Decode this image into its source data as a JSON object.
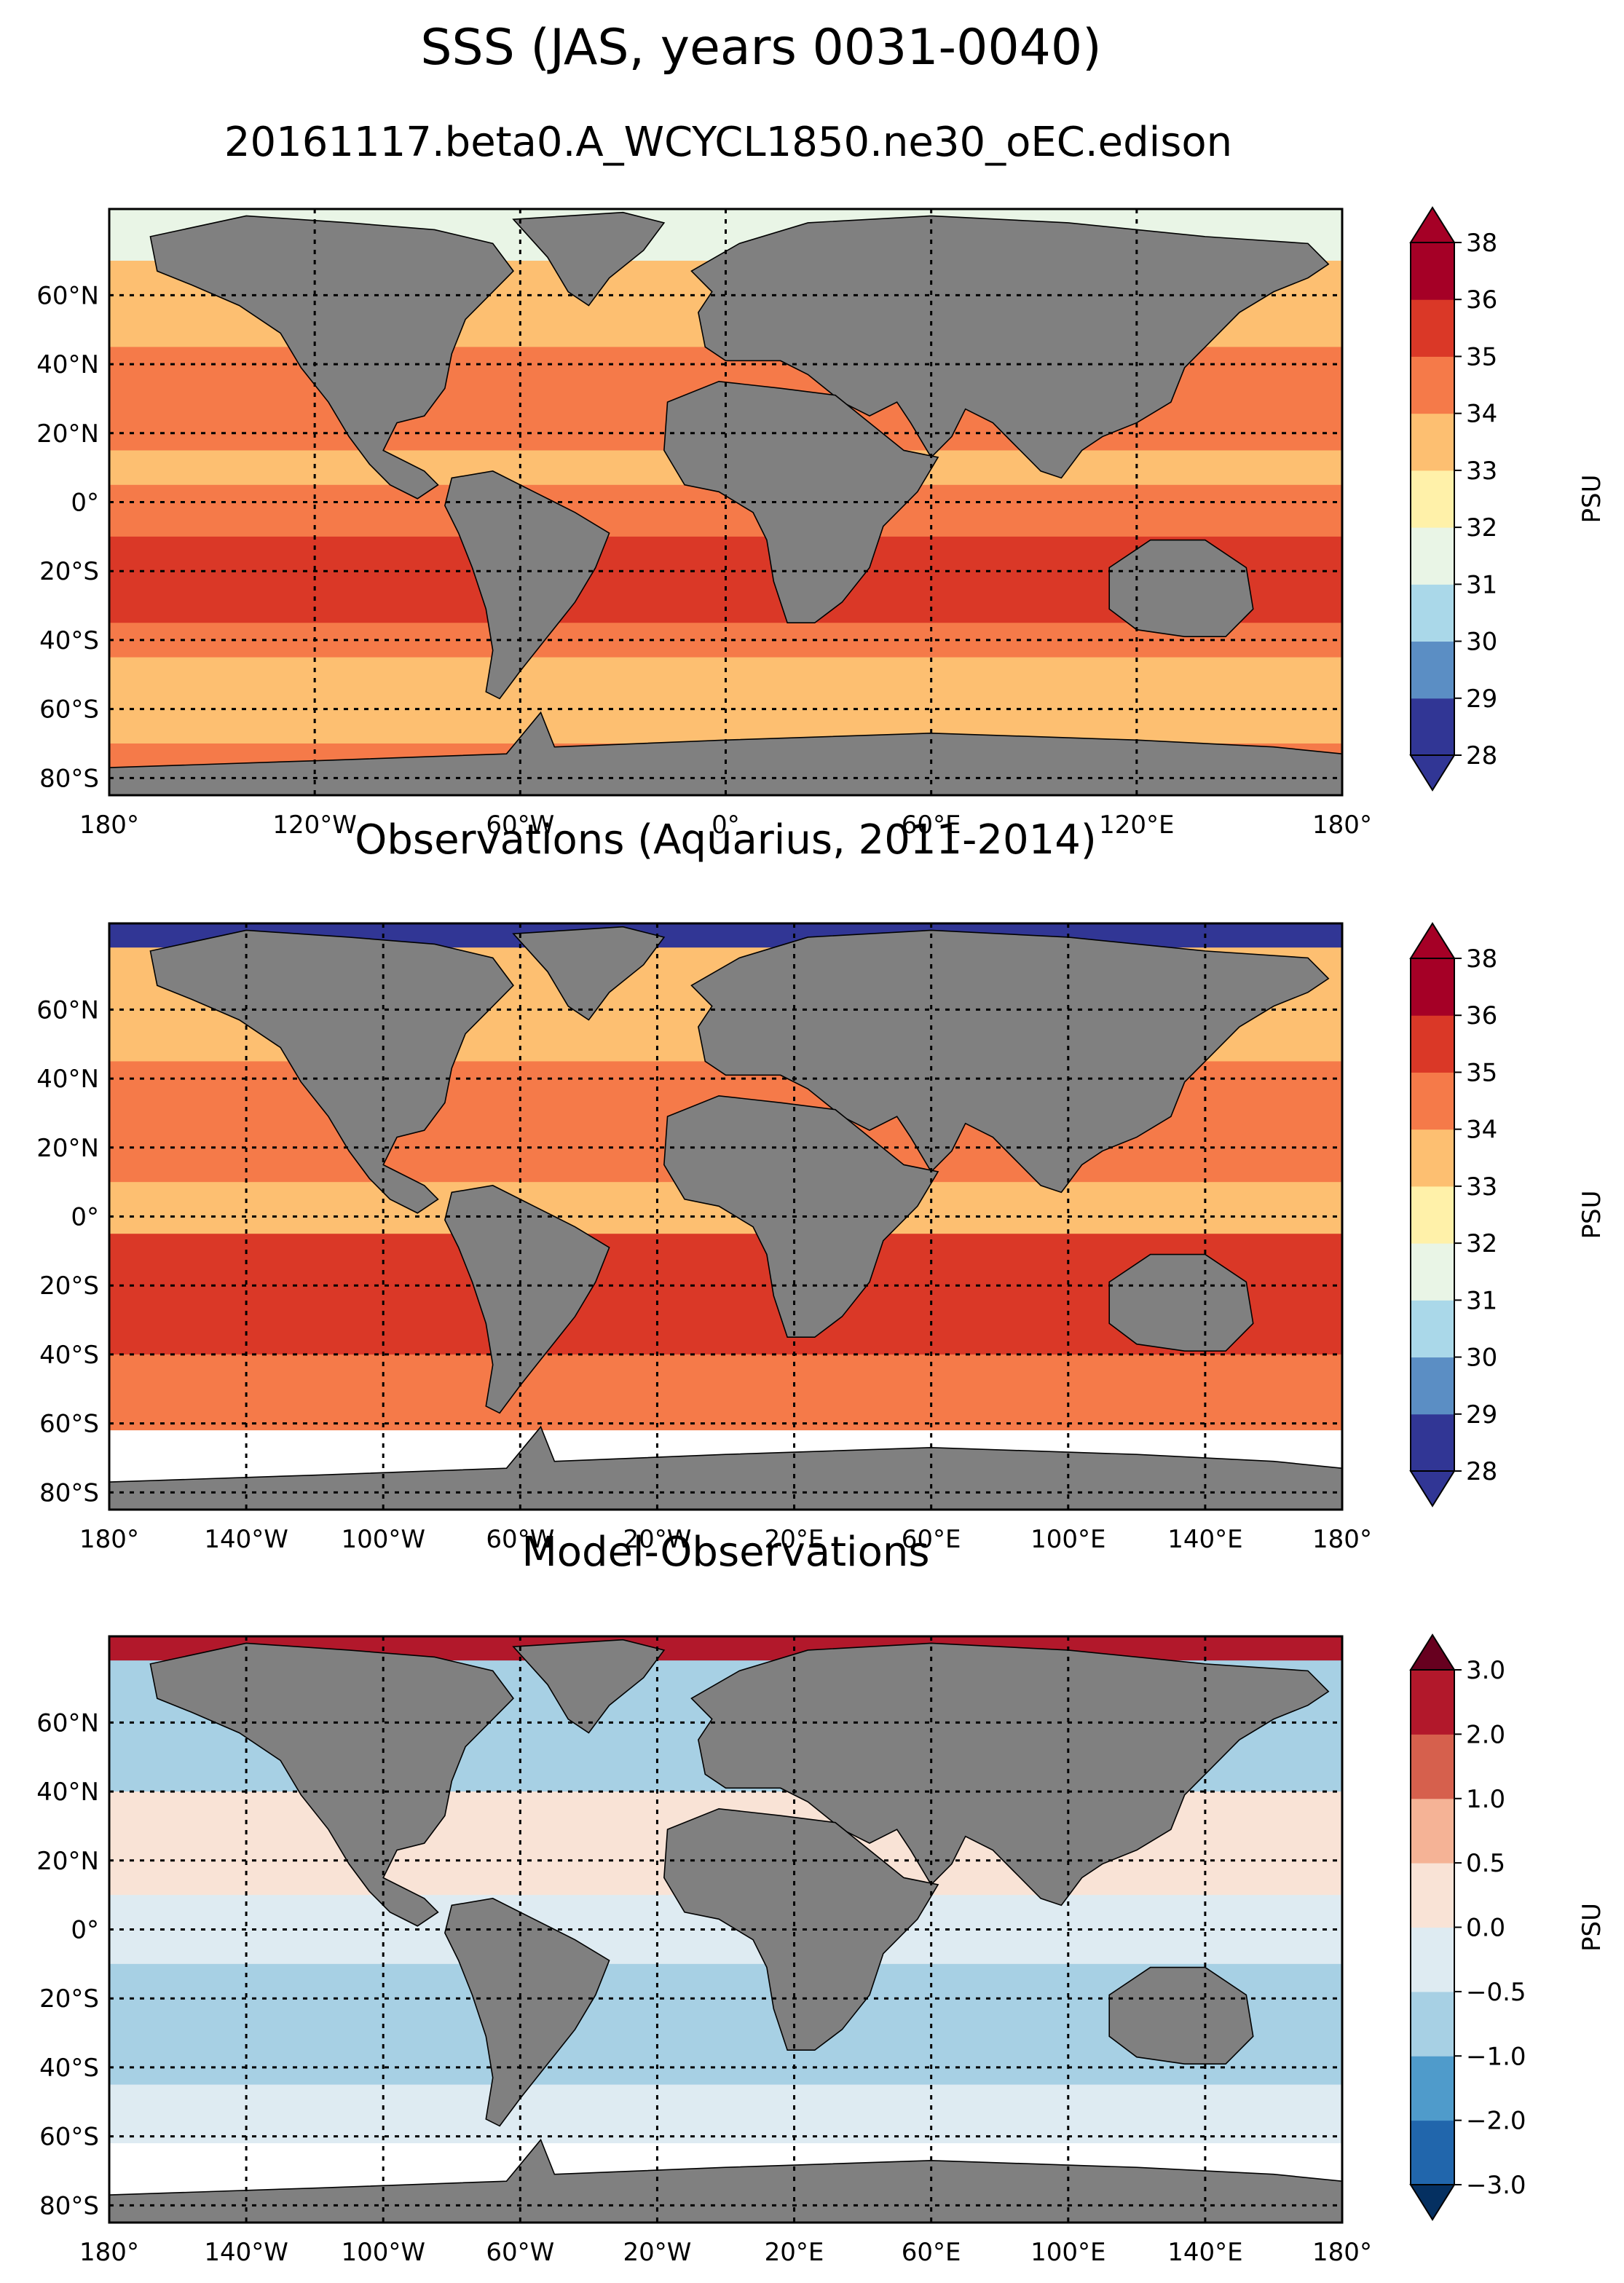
{
  "figure": {
    "title": "SSS (JAS, years 0031-0040)",
    "subtitle": "20161117.beta0.A_WCYCL1850.ne30_oEC.edison",
    "land_color": "#808080",
    "background_color": "#ffffff"
  },
  "chart_data": [
    {
      "type": "heatmap",
      "title": "",
      "xlim": [
        -180,
        180
      ],
      "ylim": [
        -85,
        85
      ],
      "x_ticks": [
        -180,
        -120,
        -60,
        0,
        60,
        120,
        180
      ],
      "x_tick_labels": [
        "180°",
        "120°W",
        "60°W",
        "0°",
        "60°E",
        "120°E",
        "180°"
      ],
      "y_ticks": [
        60,
        40,
        20,
        0,
        -20,
        -40,
        -60,
        -80
      ],
      "y_tick_labels": [
        "60°N",
        "40°N",
        "20°N",
        "0°",
        "20°S",
        "40°S",
        "60°S",
        "80°S"
      ],
      "grid": true,
      "colorbar": {
        "label": "PSU",
        "levels": [
          "28",
          "29",
          "30",
          "31",
          "32",
          "33",
          "34",
          "35",
          "36",
          "38"
        ],
        "colors": [
          "#313695",
          "#5b8ec4",
          "#aad8e9",
          "#e9f5e6",
          "#fff1a9",
          "#fdbf71",
          "#f57a49",
          "#da3827",
          "#a50026"
        ],
        "extend": "both"
      },
      "bands": [
        {
          "lat_max": 85,
          "lat_min": 70,
          "value_color": "#e9f5e6"
        },
        {
          "lat_max": 70,
          "lat_min": 45,
          "value_color": "#fdbf71"
        },
        {
          "lat_max": 45,
          "lat_min": 15,
          "value_color": "#f57a49"
        },
        {
          "lat_max": 15,
          "lat_min": 5,
          "value_color": "#fdbf71"
        },
        {
          "lat_max": 5,
          "lat_min": -10,
          "value_color": "#f57a49"
        },
        {
          "lat_max": -10,
          "lat_min": -35,
          "value_color": "#da3827"
        },
        {
          "lat_max": -35,
          "lat_min": -45,
          "value_color": "#f57a49"
        },
        {
          "lat_max": -45,
          "lat_min": -70,
          "value_color": "#fdbf71"
        },
        {
          "lat_max": -70,
          "lat_min": -85,
          "value_color": "#f57a49"
        }
      ]
    },
    {
      "type": "heatmap",
      "title": "Observations (Aquarius, 2011-2014)",
      "xlim": [
        -180,
        180
      ],
      "ylim": [
        -85,
        85
      ],
      "x_ticks": [
        -180,
        -140,
        -100,
        -60,
        -20,
        20,
        60,
        100,
        140,
        180
      ],
      "x_tick_labels": [
        "180°",
        "140°W",
        "100°W",
        "60°W",
        "20°W",
        "20°E",
        "60°E",
        "100°E",
        "140°E",
        "180°"
      ],
      "y_ticks": [
        60,
        40,
        20,
        0,
        -20,
        -40,
        -60,
        -80
      ],
      "y_tick_labels": [
        "60°N",
        "40°N",
        "20°N",
        "0°",
        "20°S",
        "40°S",
        "60°S",
        "80°S"
      ],
      "grid": true,
      "colorbar": {
        "label": "PSU",
        "levels": [
          "28",
          "29",
          "30",
          "31",
          "32",
          "33",
          "34",
          "35",
          "36",
          "38"
        ],
        "colors": [
          "#313695",
          "#5b8ec4",
          "#aad8e9",
          "#e9f5e6",
          "#fff1a9",
          "#fdbf71",
          "#f57a49",
          "#da3827",
          "#a50026"
        ],
        "extend": "both"
      },
      "bands": [
        {
          "lat_max": 85,
          "lat_min": 78,
          "value_color": "#313695"
        },
        {
          "lat_max": 78,
          "lat_min": 45,
          "value_color": "#fdbf71"
        },
        {
          "lat_max": 45,
          "lat_min": 10,
          "value_color": "#f57a49"
        },
        {
          "lat_max": 10,
          "lat_min": -5,
          "value_color": "#fdbf71"
        },
        {
          "lat_max": -5,
          "lat_min": -40,
          "value_color": "#da3827"
        },
        {
          "lat_max": -40,
          "lat_min": -62,
          "value_color": "#f57a49"
        },
        {
          "lat_max": -62,
          "lat_min": -85,
          "value_color": "#ffffff"
        }
      ]
    },
    {
      "type": "heatmap",
      "title": "Model-Observations",
      "xlim": [
        -180,
        180
      ],
      "ylim": [
        -85,
        85
      ],
      "x_ticks": [
        -180,
        -140,
        -100,
        -60,
        -20,
        20,
        60,
        100,
        140,
        180
      ],
      "x_tick_labels": [
        "180°",
        "140°W",
        "100°W",
        "60°W",
        "20°W",
        "20°E",
        "60°E",
        "100°E",
        "140°E",
        "180°"
      ],
      "y_ticks": [
        60,
        40,
        20,
        0,
        -20,
        -40,
        -60,
        -80
      ],
      "y_tick_labels": [
        "60°N",
        "40°N",
        "20°N",
        "0°",
        "20°S",
        "40°S",
        "60°S",
        "80°S"
      ],
      "grid": true,
      "colorbar": {
        "label": "PSU",
        "levels": [
          "−3.0",
          "−2.0",
          "−1.0",
          "−0.5",
          "0.0",
          "0.5",
          "1.0",
          "2.0",
          "3.0"
        ],
        "colors": [
          "#2166ac",
          "#4f9bcb",
          "#a7d0e4",
          "#deebf2",
          "#f9e3d6",
          "#f5b396",
          "#d6604d",
          "#b2182b"
        ],
        "under_color": "#053061",
        "over_color": "#67001f",
        "extend": "both"
      },
      "bands": [
        {
          "lat_max": 85,
          "lat_min": 78,
          "value_color": "#b2182b"
        },
        {
          "lat_max": 78,
          "lat_min": 40,
          "value_color": "#a7d0e4"
        },
        {
          "lat_max": 40,
          "lat_min": 10,
          "value_color": "#f9e3d6"
        },
        {
          "lat_max": 10,
          "lat_min": -10,
          "value_color": "#deebf2"
        },
        {
          "lat_max": -10,
          "lat_min": -45,
          "value_color": "#a7d0e4"
        },
        {
          "lat_max": -45,
          "lat_min": -62,
          "value_color": "#deebf2"
        },
        {
          "lat_max": -62,
          "lat_min": -85,
          "value_color": "#ffffff"
        }
      ]
    }
  ]
}
